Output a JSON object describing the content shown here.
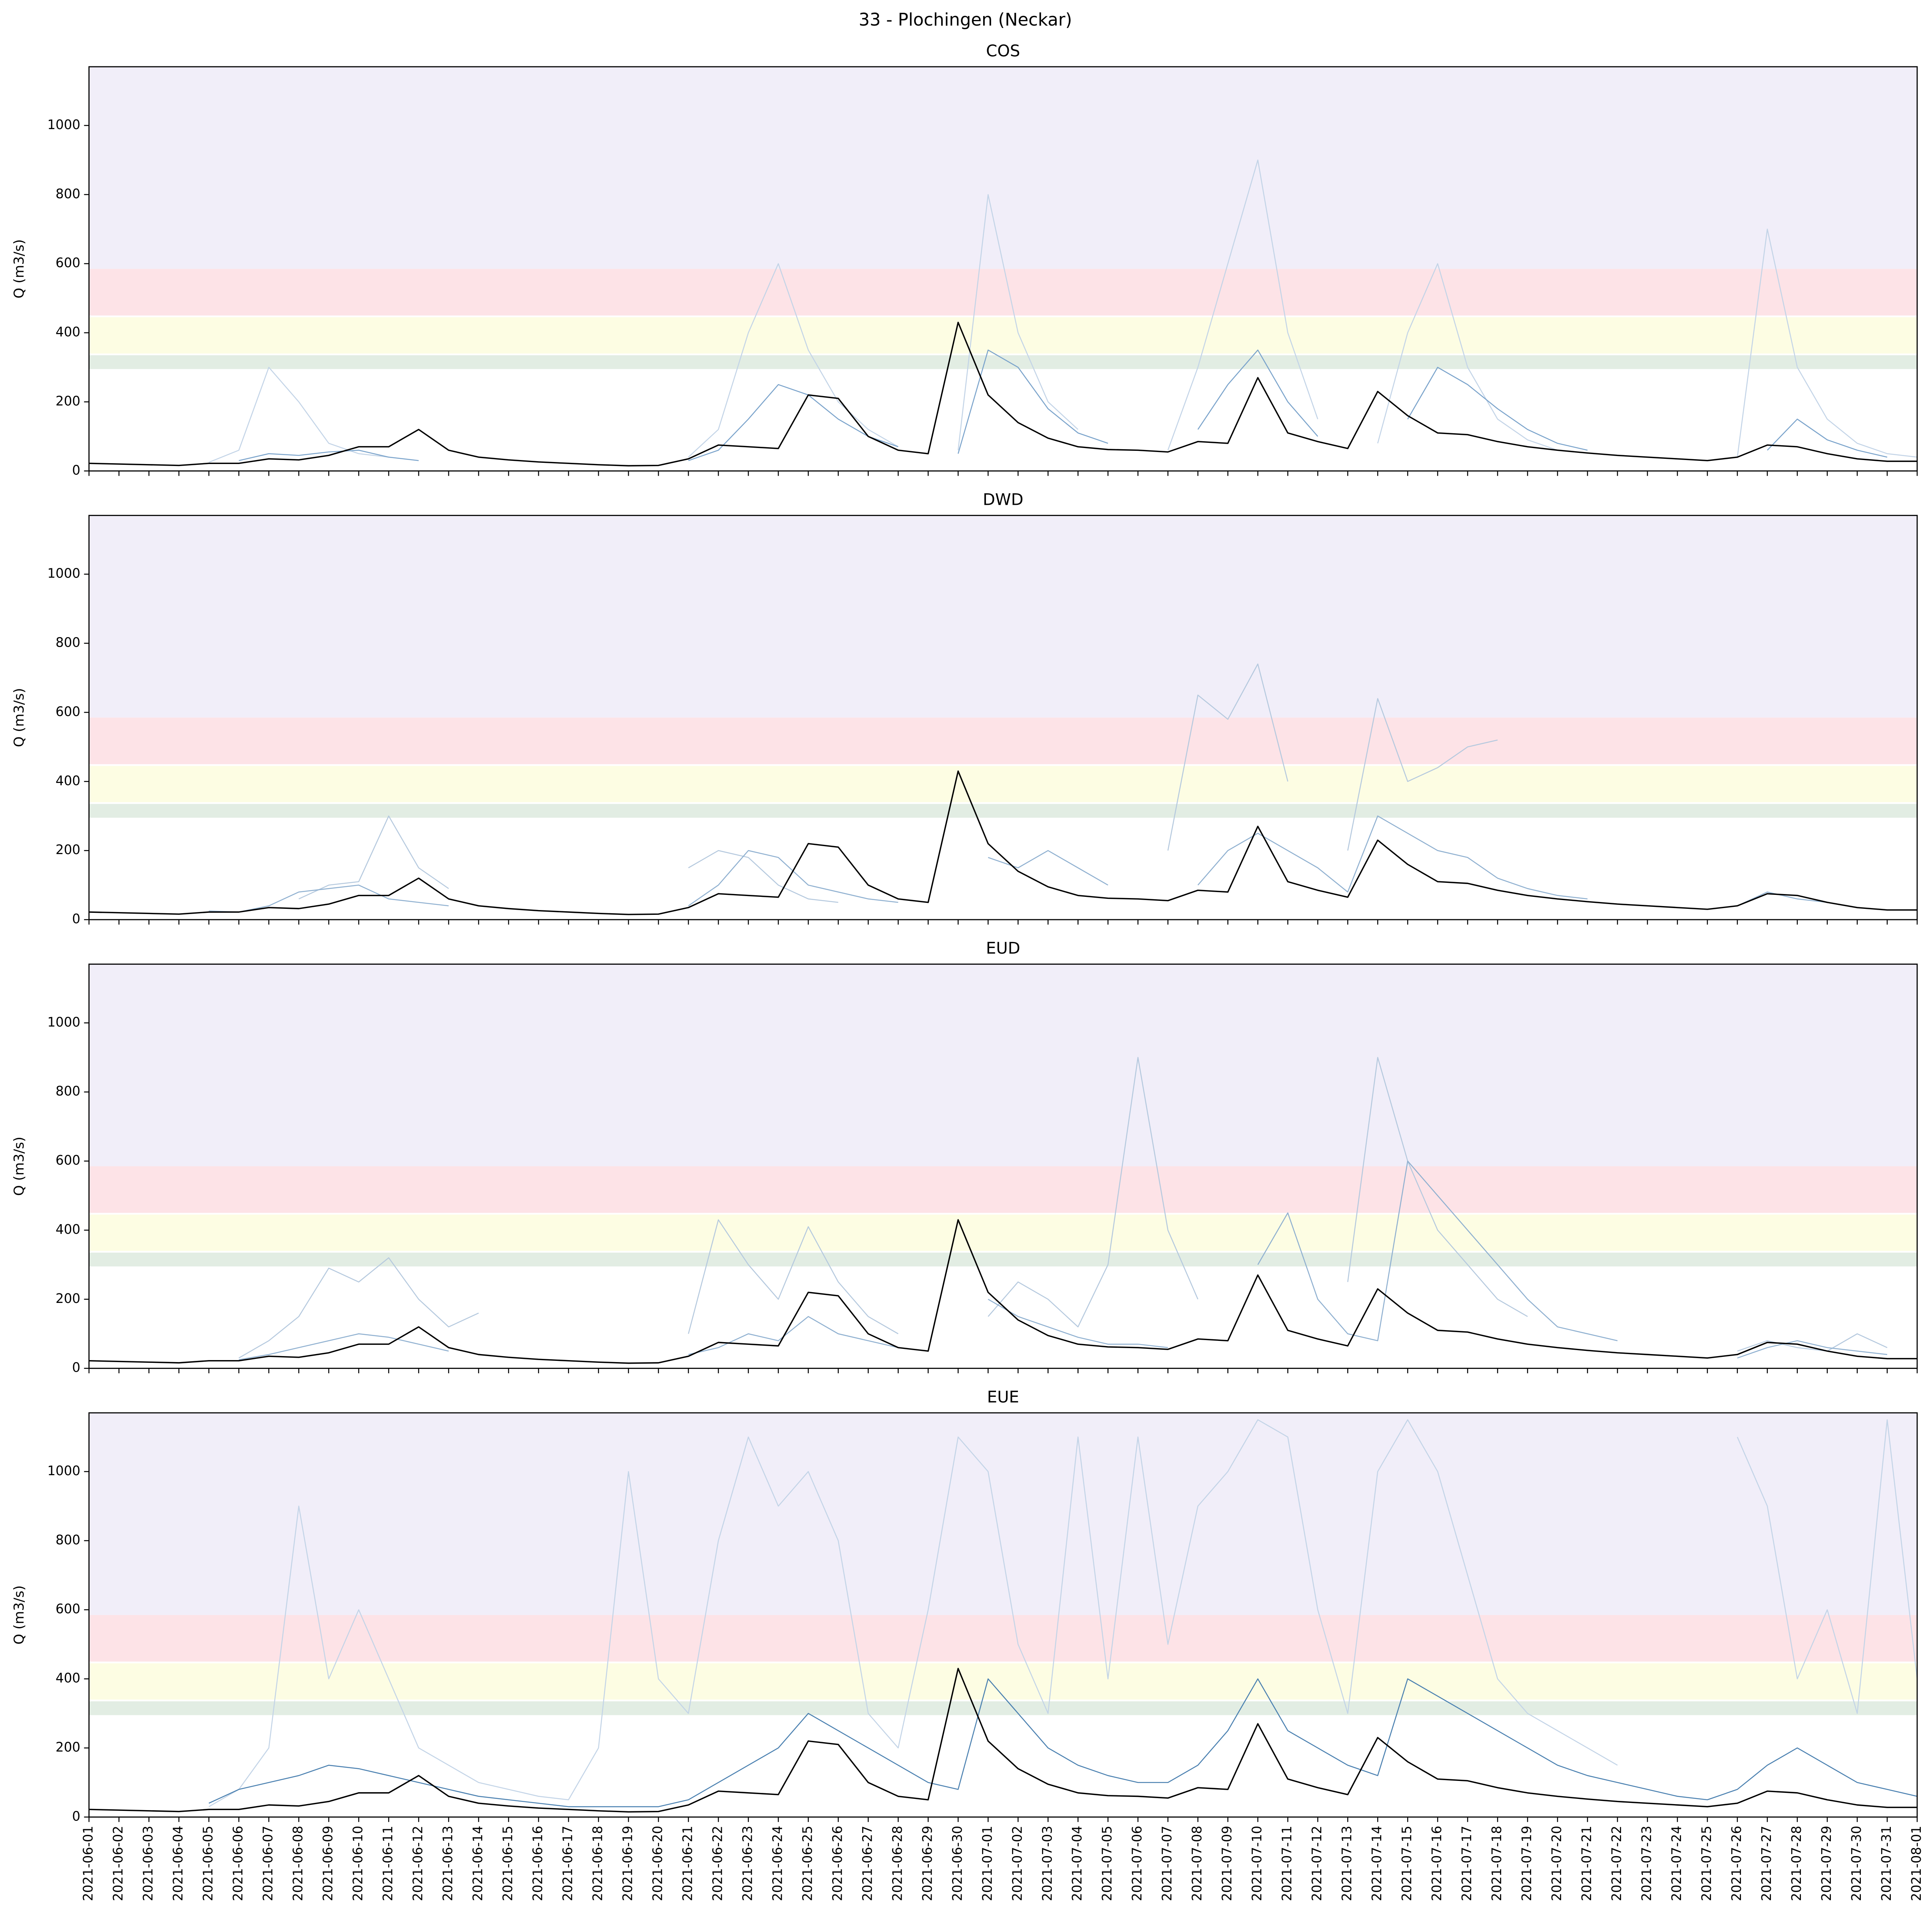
{
  "title": "33 - Plochingen (Neckar)",
  "x": [
    "2021-06-01",
    "2021-06-02",
    "2021-06-03",
    "2021-06-04",
    "2021-06-05",
    "2021-06-06",
    "2021-06-07",
    "2021-06-08",
    "2021-06-09",
    "2021-06-10",
    "2021-06-11",
    "2021-06-12",
    "2021-06-13",
    "2021-06-14",
    "2021-06-15",
    "2021-06-16",
    "2021-06-17",
    "2021-06-18",
    "2021-06-19",
    "2021-06-20",
    "2021-06-21",
    "2021-06-22",
    "2021-06-23",
    "2021-06-24",
    "2021-06-25",
    "2021-06-26",
    "2021-06-27",
    "2021-06-28",
    "2021-06-29",
    "2021-06-30",
    "2021-07-01",
    "2021-07-02",
    "2021-07-03",
    "2021-07-04",
    "2021-07-05",
    "2021-07-06",
    "2021-07-07",
    "2021-07-08",
    "2021-07-09",
    "2021-07-10",
    "2021-07-11",
    "2021-07-12",
    "2021-07-13",
    "2021-07-14",
    "2021-07-15",
    "2021-07-16",
    "2021-07-17",
    "2021-07-18",
    "2021-07-19",
    "2021-07-20",
    "2021-07-21",
    "2021-07-22",
    "2021-07-23",
    "2021-07-24",
    "2021-07-25",
    "2021-07-26",
    "2021-07-27",
    "2021-07-28",
    "2021-07-29",
    "2021-07-30",
    "2021-07-31",
    "2021-08-01"
  ],
  "xlim": [
    "2021-06-01",
    "2021-08-01"
  ],
  "chart_data": [
    {
      "type": "line",
      "title": "COS",
      "y_label": "Q (m3/s)",
      "ylim": [
        0,
        1170
      ],
      "yticks": [
        0,
        200,
        400,
        600,
        800,
        1000
      ],
      "bands": [
        {
          "from": 295,
          "to": 335,
          "color": "#e2ede3"
        },
        {
          "from": 340,
          "to": 445,
          "color": "#fdfde3"
        },
        {
          "from": 450,
          "to": 585,
          "color": "#fde3e7"
        },
        {
          "from": 585,
          "to": 1170,
          "color": "#f1eef9"
        }
      ],
      "series": [
        {
          "color": "#c3d4e7",
          "values": [
            null,
            null,
            null,
            null,
            25,
            60,
            300,
            200,
            80,
            50,
            40,
            null,
            null,
            null,
            null,
            null,
            null,
            null,
            null,
            null,
            40,
            120,
            400,
            600,
            350,
            200,
            120,
            70,
            null,
            60,
            800,
            400,
            200,
            120,
            null,
            null,
            60,
            300,
            600,
            900,
            400,
            150,
            null,
            80,
            400,
            600,
            300,
            150,
            90,
            60,
            null,
            null,
            null,
            null,
            null,
            40,
            700,
            300,
            150,
            80,
            50,
            40
          ]
        },
        {
          "color": "#7aa3cb",
          "values": [
            null,
            null,
            null,
            null,
            null,
            30,
            50,
            45,
            55,
            60,
            40,
            30,
            null,
            null,
            null,
            null,
            null,
            null,
            null,
            null,
            30,
            60,
            150,
            250,
            220,
            150,
            100,
            70,
            null,
            50,
            350,
            300,
            180,
            110,
            80,
            null,
            null,
            120,
            250,
            350,
            200,
            100,
            null,
            null,
            150,
            300,
            250,
            180,
            120,
            80,
            60,
            null,
            null,
            null,
            null,
            null,
            60,
            150,
            90,
            60,
            40,
            null
          ]
        },
        {
          "color": "#000000",
          "values": [
            22,
            20,
            18,
            16,
            22,
            22,
            35,
            32,
            45,
            70,
            70,
            120,
            60,
            40,
            32,
            26,
            22,
            18,
            15,
            16,
            35,
            75,
            70,
            65,
            220,
            210,
            100,
            60,
            50,
            430,
            220,
            140,
            95,
            70,
            62,
            60,
            55,
            85,
            80,
            270,
            110,
            85,
            65,
            230,
            160,
            110,
            105,
            85,
            70,
            60,
            52,
            45,
            40,
            35,
            30,
            40,
            75,
            70,
            50,
            35,
            28,
            28
          ]
        }
      ]
    },
    {
      "type": "line",
      "title": "DWD",
      "y_label": "Q (m3/s)",
      "ylim": [
        0,
        1170
      ],
      "yticks": [
        0,
        200,
        400,
        600,
        800,
        1000
      ],
      "bands": [
        {
          "from": 295,
          "to": 335,
          "color": "#e2ede3"
        },
        {
          "from": 340,
          "to": 445,
          "color": "#fdfde3"
        },
        {
          "from": 450,
          "to": 585,
          "color": "#fde3e7"
        },
        {
          "from": 585,
          "to": 1170,
          "color": "#f1eef9"
        }
      ],
      "series": [
        {
          "color": "#b5c9de",
          "values": [
            null,
            null,
            null,
            null,
            null,
            null,
            null,
            60,
            100,
            110,
            300,
            150,
            90,
            null,
            null,
            null,
            null,
            null,
            null,
            null,
            150,
            200,
            180,
            100,
            60,
            50,
            null,
            null,
            null,
            null,
            null,
            null,
            null,
            null,
            null,
            null,
            200,
            650,
            580,
            740,
            400,
            null,
            200,
            640,
            400,
            440,
            500,
            520,
            null,
            null,
            null,
            null,
            null,
            null,
            null,
            null,
            null,
            null,
            null,
            null,
            null,
            null
          ]
        },
        {
          "color": "#8fb0d0",
          "values": [
            null,
            null,
            null,
            null,
            25,
            22,
            40,
            80,
            90,
            100,
            60,
            50,
            40,
            null,
            null,
            null,
            null,
            null,
            null,
            null,
            40,
            100,
            200,
            180,
            100,
            80,
            60,
            50,
            null,
            null,
            180,
            150,
            200,
            150,
            100,
            null,
            null,
            100,
            200,
            250,
            200,
            150,
            80,
            300,
            250,
            200,
            180,
            120,
            90,
            70,
            60,
            null,
            null,
            null,
            null,
            40,
            80,
            60,
            50,
            null,
            null,
            null
          ]
        },
        {
          "color": "#000000",
          "values": [
            22,
            20,
            18,
            16,
            22,
            22,
            35,
            32,
            45,
            70,
            70,
            120,
            60,
            40,
            32,
            26,
            22,
            18,
            15,
            16,
            35,
            75,
            70,
            65,
            220,
            210,
            100,
            60,
            50,
            430,
            220,
            140,
            95,
            70,
            62,
            60,
            55,
            85,
            80,
            270,
            110,
            85,
            65,
            230,
            160,
            110,
            105,
            85,
            70,
            60,
            52,
            45,
            40,
            35,
            30,
            40,
            75,
            70,
            50,
            35,
            28,
            28
          ]
        }
      ]
    },
    {
      "type": "line",
      "title": "EUD",
      "y_label": "Q (m3/s)",
      "ylim": [
        0,
        1170
      ],
      "yticks": [
        0,
        200,
        400,
        600,
        800,
        1000
      ],
      "bands": [
        {
          "from": 295,
          "to": 335,
          "color": "#e2ede3"
        },
        {
          "from": 340,
          "to": 445,
          "color": "#fdfde3"
        },
        {
          "from": 450,
          "to": 585,
          "color": "#fde3e7"
        },
        {
          "from": 585,
          "to": 1170,
          "color": "#f1eef9"
        }
      ],
      "series": [
        {
          "color": "#b5c9de",
          "values": [
            null,
            null,
            null,
            null,
            null,
            30,
            80,
            150,
            290,
            250,
            320,
            200,
            120,
            160,
            null,
            null,
            null,
            null,
            null,
            null,
            100,
            430,
            300,
            200,
            410,
            250,
            150,
            100,
            null,
            null,
            150,
            250,
            200,
            120,
            300,
            900,
            400,
            200,
            null,
            null,
            null,
            null,
            250,
            900,
            600,
            400,
            300,
            200,
            150,
            null,
            null,
            null,
            null,
            null,
            null,
            50,
            80,
            60,
            50,
            100,
            60,
            null
          ]
        },
        {
          "color": "#8fb0d0",
          "values": [
            null,
            null,
            null,
            null,
            null,
            25,
            40,
            60,
            80,
            100,
            90,
            70,
            50,
            null,
            null,
            null,
            null,
            null,
            null,
            null,
            40,
            60,
            100,
            80,
            150,
            100,
            80,
            60,
            null,
            null,
            200,
            150,
            120,
            90,
            70,
            70,
            60,
            null,
            null,
            300,
            450,
            200,
            100,
            80,
            600,
            500,
            400,
            300,
            200,
            120,
            100,
            80,
            null,
            null,
            null,
            30,
            60,
            80,
            60,
            50,
            40,
            null
          ]
        },
        {
          "color": "#000000",
          "values": [
            22,
            20,
            18,
            16,
            22,
            22,
            35,
            32,
            45,
            70,
            70,
            120,
            60,
            40,
            32,
            26,
            22,
            18,
            15,
            16,
            35,
            75,
            70,
            65,
            220,
            210,
            100,
            60,
            50,
            430,
            220,
            140,
            95,
            70,
            62,
            60,
            55,
            85,
            80,
            270,
            110,
            85,
            65,
            230,
            160,
            110,
            105,
            85,
            70,
            60,
            52,
            45,
            40,
            35,
            30,
            40,
            75,
            70,
            50,
            35,
            28,
            28
          ]
        }
      ]
    },
    {
      "type": "line",
      "title": "EUE",
      "y_label": "Q (m3/s)",
      "ylim": [
        0,
        1170
      ],
      "yticks": [
        0,
        200,
        400,
        600,
        800,
        1000
      ],
      "bands": [
        {
          "from": 295,
          "to": 335,
          "color": "#e2ede3"
        },
        {
          "from": 340,
          "to": 445,
          "color": "#fdfde3"
        },
        {
          "from": 450,
          "to": 585,
          "color": "#fde3e7"
        },
        {
          "from": 585,
          "to": 1170,
          "color": "#f1eef9"
        }
      ],
      "series": [
        {
          "color": "#c3d4e7",
          "values": [
            null,
            null,
            null,
            null,
            30,
            80,
            200,
            900,
            400,
            600,
            400,
            200,
            150,
            100,
            80,
            60,
            50,
            200,
            1000,
            400,
            300,
            800,
            1100,
            900,
            1000,
            800,
            300,
            200,
            600,
            1100,
            1000,
            500,
            300,
            1100,
            400,
            1100,
            500,
            900,
            1000,
            1150,
            1100,
            600,
            300,
            1000,
            1150,
            1000,
            700,
            400,
            300,
            250,
            200,
            150,
            null,
            null,
            null,
            1100,
            900,
            400,
            600,
            300,
            1150,
            400
          ]
        },
        {
          "color": "#4a80b0",
          "values": [
            null,
            null,
            null,
            null,
            40,
            80,
            100,
            120,
            150,
            140,
            120,
            100,
            80,
            60,
            50,
            40,
            30,
            30,
            30,
            30,
            50,
            100,
            150,
            200,
            300,
            250,
            200,
            150,
            100,
            80,
            400,
            300,
            200,
            150,
            120,
            100,
            100,
            150,
            250,
            400,
            250,
            200,
            150,
            120,
            400,
            350,
            300,
            250,
            200,
            150,
            120,
            100,
            80,
            60,
            50,
            80,
            150,
            200,
            150,
            100,
            80,
            60
          ]
        },
        {
          "color": "#000000",
          "values": [
            22,
            20,
            18,
            16,
            22,
            22,
            35,
            32,
            45,
            70,
            70,
            120,
            60,
            40,
            32,
            26,
            22,
            18,
            15,
            16,
            35,
            75,
            70,
            65,
            220,
            210,
            100,
            60,
            50,
            430,
            220,
            140,
            95,
            70,
            62,
            60,
            55,
            85,
            80,
            270,
            110,
            85,
            65,
            230,
            160,
            110,
            105,
            85,
            70,
            60,
            52,
            45,
            40,
            35,
            30,
            40,
            75,
            70,
            50,
            35,
            28,
            28
          ]
        }
      ]
    }
  ]
}
